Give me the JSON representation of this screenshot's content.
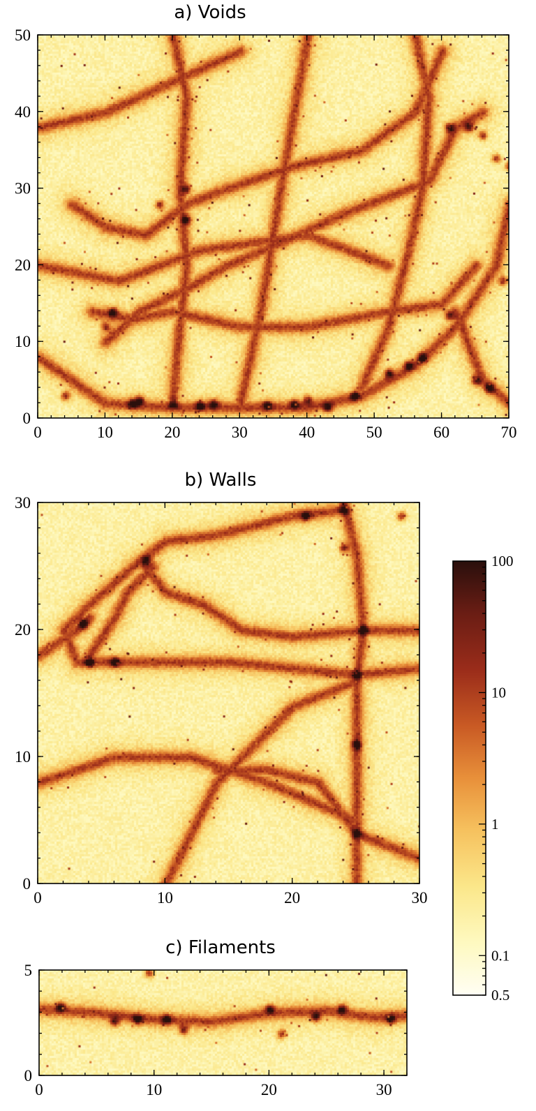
{
  "chart_data": [
    {
      "type": "heatmap",
      "title": "a) Voids",
      "xlim": [
        0,
        70
      ],
      "ylim": [
        0,
        50
      ],
      "xticks": [
        0,
        10,
        20,
        30,
        40,
        50,
        60,
        70
      ],
      "yticks": [
        0,
        10,
        20,
        30,
        40,
        50
      ],
      "xtick_labels": [
        "0",
        "10",
        "20",
        "30",
        "40",
        "50",
        "60",
        "70"
      ],
      "ytick_labels": [
        "0",
        "10",
        "20",
        "30",
        "40",
        "50"
      ],
      "structures": {
        "filaments": [
          [
            [
              0,
              8
            ],
            [
              5,
              5
            ],
            [
              10,
              2
            ],
            [
              20,
              1.5
            ],
            [
              30,
              1.5
            ],
            [
              40,
              1.5
            ],
            [
              48,
              3
            ],
            [
              56,
              7
            ],
            [
              62,
              12
            ],
            [
              68,
              20
            ],
            [
              70,
              28
            ]
          ],
          [
            [
              10,
              10
            ],
            [
              15,
              14
            ],
            [
              22,
              17
            ],
            [
              28,
              20
            ],
            [
              36,
              23
            ],
            [
              46,
              27
            ],
            [
              58,
              31
            ],
            [
              62,
              38
            ],
            [
              66,
              40
            ]
          ],
          [
            [
              8,
              14
            ],
            [
              14,
              13
            ],
            [
              20,
              14
            ],
            [
              30,
              12
            ],
            [
              40,
              12
            ],
            [
              52,
              14
            ],
            [
              60,
              15
            ],
            [
              65,
              20
            ]
          ],
          [
            [
              5,
              28
            ],
            [
              10,
              25
            ],
            [
              16,
              24
            ],
            [
              22,
              28
            ],
            [
              28,
              30
            ],
            [
              38,
              33
            ],
            [
              48,
              35
            ],
            [
              56,
              40
            ],
            [
              60,
              48
            ]
          ],
          [
            [
              20,
              3
            ],
            [
              21,
              12
            ],
            [
              22,
              20
            ],
            [
              21,
              30
            ],
            [
              22,
              42
            ],
            [
              20,
              50
            ]
          ],
          [
            [
              48,
              4
            ],
            [
              52,
              12
            ],
            [
              55,
              22
            ],
            [
              57,
              30
            ],
            [
              58,
              42
            ],
            [
              56,
              50
            ]
          ],
          [
            [
              30,
              2
            ],
            [
              33,
              14
            ],
            [
              36,
              30
            ],
            [
              40,
              50
            ]
          ],
          [
            [
              0,
              20
            ],
            [
              12,
              18
            ],
            [
              24,
              22
            ],
            [
              40,
              24
            ],
            [
              52,
              20
            ]
          ],
          [
            [
              62,
              14
            ],
            [
              66,
              5
            ],
            [
              70,
              2
            ]
          ],
          [
            [
              0,
              38
            ],
            [
              10,
              40
            ],
            [
              20,
              44
            ],
            [
              30,
              48
            ]
          ]
        ],
        "clusters": [
          [
            14,
            2
          ],
          [
            15,
            2.5
          ],
          [
            20,
            2
          ],
          [
            24,
            1.8
          ],
          [
            26,
            2
          ],
          [
            34,
            1.8
          ],
          [
            38,
            2
          ],
          [
            40,
            2.5
          ],
          [
            43,
            1.5
          ],
          [
            47,
            3
          ],
          [
            52,
            6
          ],
          [
            55,
            7
          ],
          [
            57,
            8
          ],
          [
            61,
            13.5
          ],
          [
            61,
            38
          ],
          [
            64,
            38
          ],
          [
            66,
            37
          ],
          [
            68,
            34
          ],
          [
            70,
            33
          ],
          [
            69,
            18
          ],
          [
            65,
            5
          ],
          [
            67,
            4
          ],
          [
            10,
            12
          ],
          [
            11,
            14
          ],
          [
            4,
            3
          ],
          [
            22,
            26
          ],
          [
            22,
            30
          ],
          [
            18,
            28
          ]
        ]
      },
      "note_scale": "log"
    },
    {
      "type": "heatmap",
      "title": "b) Walls",
      "xlim": [
        0,
        30
      ],
      "ylim": [
        0,
        30
      ],
      "xticks": [
        0,
        10,
        20,
        30
      ],
      "yticks": [
        0,
        10,
        20,
        30
      ],
      "xtick_labels": [
        "0",
        "10",
        "20",
        "30"
      ],
      "ytick_labels": [
        "0",
        "10",
        "20",
        "30"
      ],
      "structures": {
        "filaments": [
          [
            [
              3,
              17.5
            ],
            [
              8,
              17.5
            ],
            [
              15,
              17.5
            ],
            [
              20,
              17
            ],
            [
              25,
              16.5
            ],
            [
              30,
              17
            ]
          ],
          [
            [
              25,
              0
            ],
            [
              25,
              4
            ],
            [
              25,
              10
            ],
            [
              25,
              16
            ],
            [
              25.5,
              20
            ],
            [
              25,
              26
            ],
            [
              24,
              30
            ]
          ],
          [
            [
              3,
              17.5
            ],
            [
              2,
              20
            ],
            [
              4,
              22
            ],
            [
              8,
              25.5
            ],
            [
              10,
              27
            ],
            [
              14,
              27.5
            ],
            [
              20,
              29
            ],
            [
              24,
              29.5
            ]
          ],
          [
            [
              8,
              25.5
            ],
            [
              10,
              23
            ],
            [
              13,
              22
            ],
            [
              16,
              20
            ],
            [
              20,
              19.5
            ],
            [
              25.5,
              20
            ],
            [
              30,
              20
            ]
          ],
          [
            [
              0,
              18
            ],
            [
              3,
              20
            ],
            [
              4,
              21
            ]
          ],
          [
            [
              9,
              25
            ],
            [
              7,
              23
            ],
            [
              6,
              21
            ],
            [
              4,
              18
            ]
          ],
          [
            [
              10,
              0
            ],
            [
              12,
              4
            ],
            [
              14,
              8
            ],
            [
              16,
              10
            ],
            [
              20,
              14
            ],
            [
              25,
              16
            ]
          ],
          [
            [
              14,
              9
            ],
            [
              18,
              9
            ],
            [
              22,
              8
            ],
            [
              25,
              4
            ],
            [
              30,
              2
            ]
          ],
          [
            [
              0,
              8
            ],
            [
              6,
              10
            ],
            [
              12,
              10
            ],
            [
              18,
              8
            ],
            [
              25,
              5
            ]
          ]
        ],
        "clusters": [
          [
            8.5,
            25.5
          ],
          [
            24,
            29.5
          ],
          [
            21,
            29
          ],
          [
            25.5,
            20
          ],
          [
            25,
            16.5
          ],
          [
            4,
            17.5
          ],
          [
            3.5,
            20.5
          ],
          [
            24,
            26.5
          ],
          [
            25,
            4
          ],
          [
            25,
            11
          ],
          [
            6,
            17.5
          ],
          [
            28.5,
            29
          ]
        ]
      },
      "note_scale": "log"
    },
    {
      "type": "heatmap",
      "title": "c) Filaments",
      "xlim": [
        0,
        32
      ],
      "ylim": [
        0,
        5
      ],
      "xticks": [
        0,
        10,
        20,
        30
      ],
      "yticks": [
        0,
        5
      ],
      "xtick_labels": [
        "0",
        "10",
        "20",
        "30"
      ],
      "ytick_labels": [
        "0",
        "5"
      ],
      "structures": {
        "filaments": [
          [
            [
              0,
              3.2
            ],
            [
              5,
              3
            ],
            [
              10,
              2.7
            ],
            [
              15,
              2.6
            ],
            [
              20,
              3
            ],
            [
              25,
              3.1
            ],
            [
              29,
              2.8
            ],
            [
              32,
              2.9
            ]
          ]
        ],
        "clusters": [
          [
            1.8,
            3.3
          ],
          [
            6.5,
            2.6
          ],
          [
            8.5,
            2.7
          ],
          [
            11,
            2.7
          ],
          [
            12.5,
            2.2
          ],
          [
            20,
            3.2
          ],
          [
            21,
            2
          ],
          [
            24,
            2.8
          ],
          [
            26.3,
            3.2
          ],
          [
            30.5,
            2.7
          ],
          [
            9.5,
            4.9
          ]
        ]
      },
      "note_scale": "log"
    },
    {
      "type": "colorbar",
      "scale": "log",
      "range": [
        0.05,
        100
      ],
      "ticks": [
        0.1,
        1,
        10,
        100
      ],
      "tick_labels": [
        "0.1",
        "1",
        "10",
        "100"
      ],
      "bottom_label": "0.5",
      "colors": [
        "#fffef4",
        "#fef9c0",
        "#fbe78a",
        "#f6c15e",
        "#e8903a",
        "#c95a24",
        "#9a2c1a",
        "#6a1d14",
        "#2a0f0c"
      ]
    }
  ]
}
